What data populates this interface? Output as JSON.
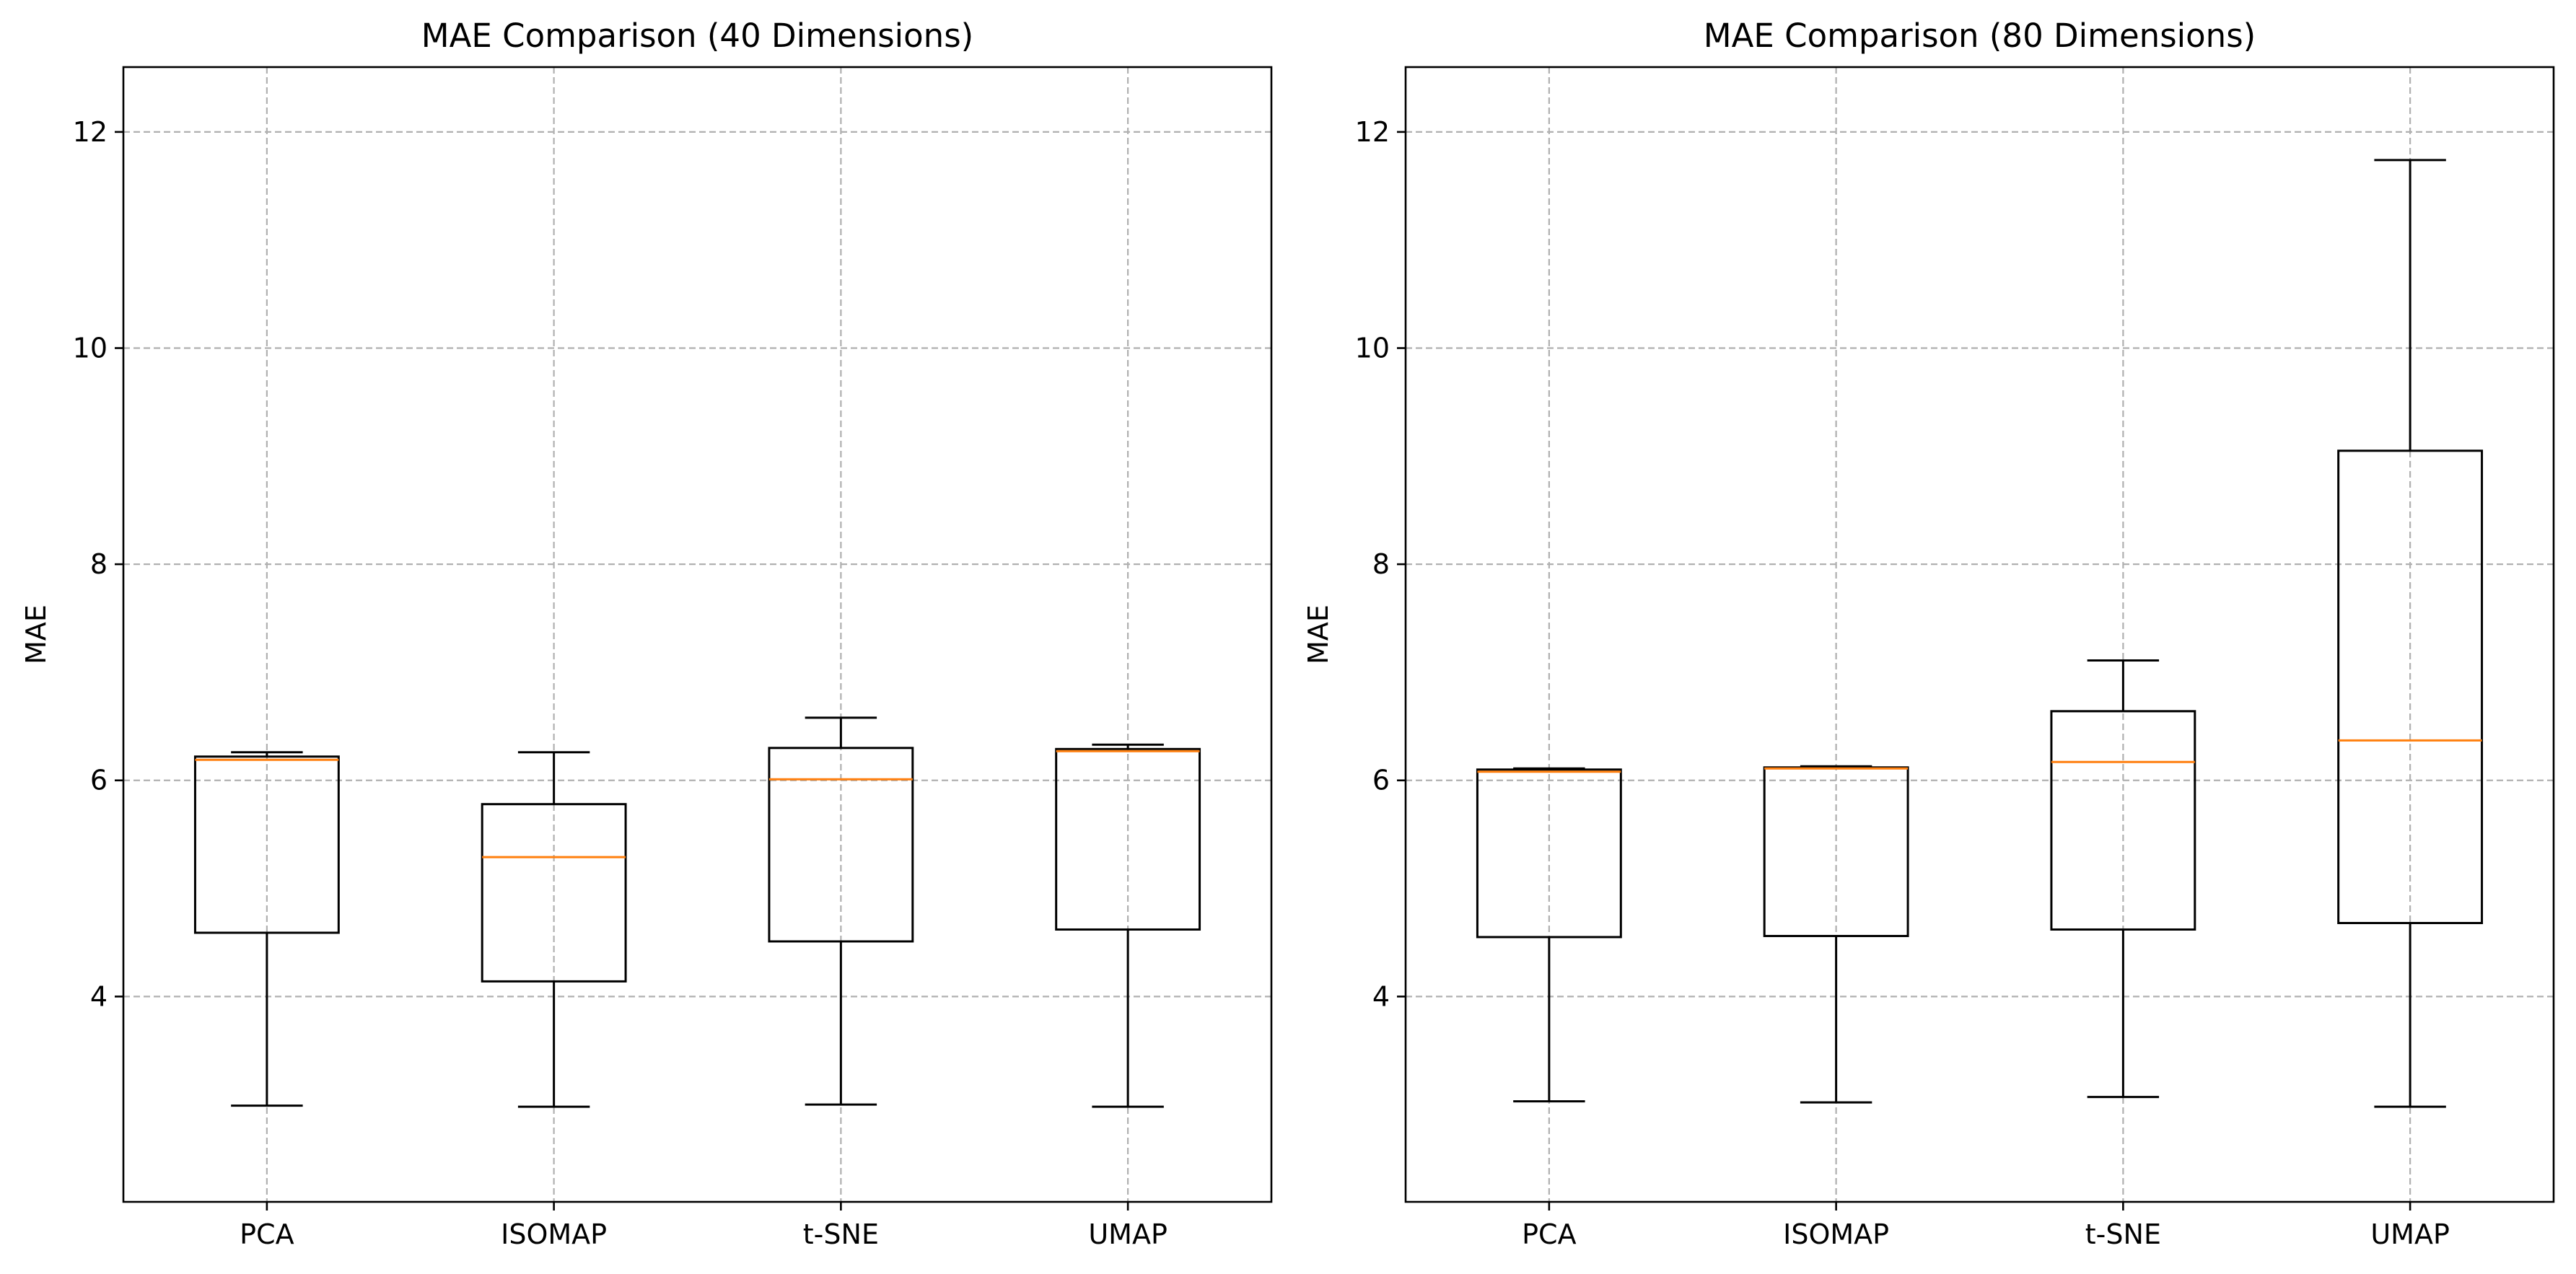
{
  "figure": {
    "background": "#ffffff"
  },
  "style": {
    "box_color": "#000000",
    "median_color": "#ff7f0e",
    "grid_color": "#b0b0b0"
  },
  "chart_data": [
    {
      "type": "box",
      "title": "MAE Comparison (40 Dimensions)",
      "xlabel": "",
      "ylabel": "MAE",
      "ylim": [
        2.1,
        12.6
      ],
      "yticks": [
        4,
        6,
        8,
        10,
        12
      ],
      "grid": true,
      "categories": [
        "PCA",
        "ISOMAP",
        "t-SNE",
        "UMAP"
      ],
      "boxes": [
        {
          "label": "PCA",
          "whisker_low": 2.99,
          "q1": 4.59,
          "median": 6.19,
          "q3": 6.22,
          "whisker_high": 6.26
        },
        {
          "label": "ISOMAP",
          "whisker_low": 2.98,
          "q1": 4.14,
          "median": 5.29,
          "q3": 5.78,
          "whisker_high": 6.26
        },
        {
          "label": "t-SNE",
          "whisker_low": 3.0,
          "q1": 4.51,
          "median": 6.01,
          "q3": 6.3,
          "whisker_high": 6.58
        },
        {
          "label": "UMAP",
          "whisker_low": 2.98,
          "q1": 4.62,
          "median": 6.27,
          "q3": 6.29,
          "whisker_high": 6.33
        }
      ]
    },
    {
      "type": "box",
      "title": "MAE Comparison (80 Dimensions)",
      "xlabel": "",
      "ylabel": "MAE",
      "ylim": [
        2.1,
        12.6
      ],
      "yticks": [
        4,
        6,
        8,
        10,
        12
      ],
      "grid": true,
      "categories": [
        "PCA",
        "ISOMAP",
        "t-SNE",
        "UMAP"
      ],
      "boxes": [
        {
          "label": "PCA",
          "whisker_low": 3.03,
          "q1": 4.55,
          "median": 6.08,
          "q3": 6.1,
          "whisker_high": 6.11
        },
        {
          "label": "ISOMAP",
          "whisker_low": 3.02,
          "q1": 4.56,
          "median": 6.11,
          "q3": 6.12,
          "whisker_high": 6.13
        },
        {
          "label": "t-SNE",
          "whisker_low": 3.07,
          "q1": 4.62,
          "median": 6.17,
          "q3": 6.64,
          "whisker_high": 7.11
        },
        {
          "label": "UMAP",
          "whisker_low": 2.98,
          "q1": 4.68,
          "median": 6.37,
          "q3": 9.05,
          "whisker_high": 11.74
        }
      ]
    }
  ]
}
